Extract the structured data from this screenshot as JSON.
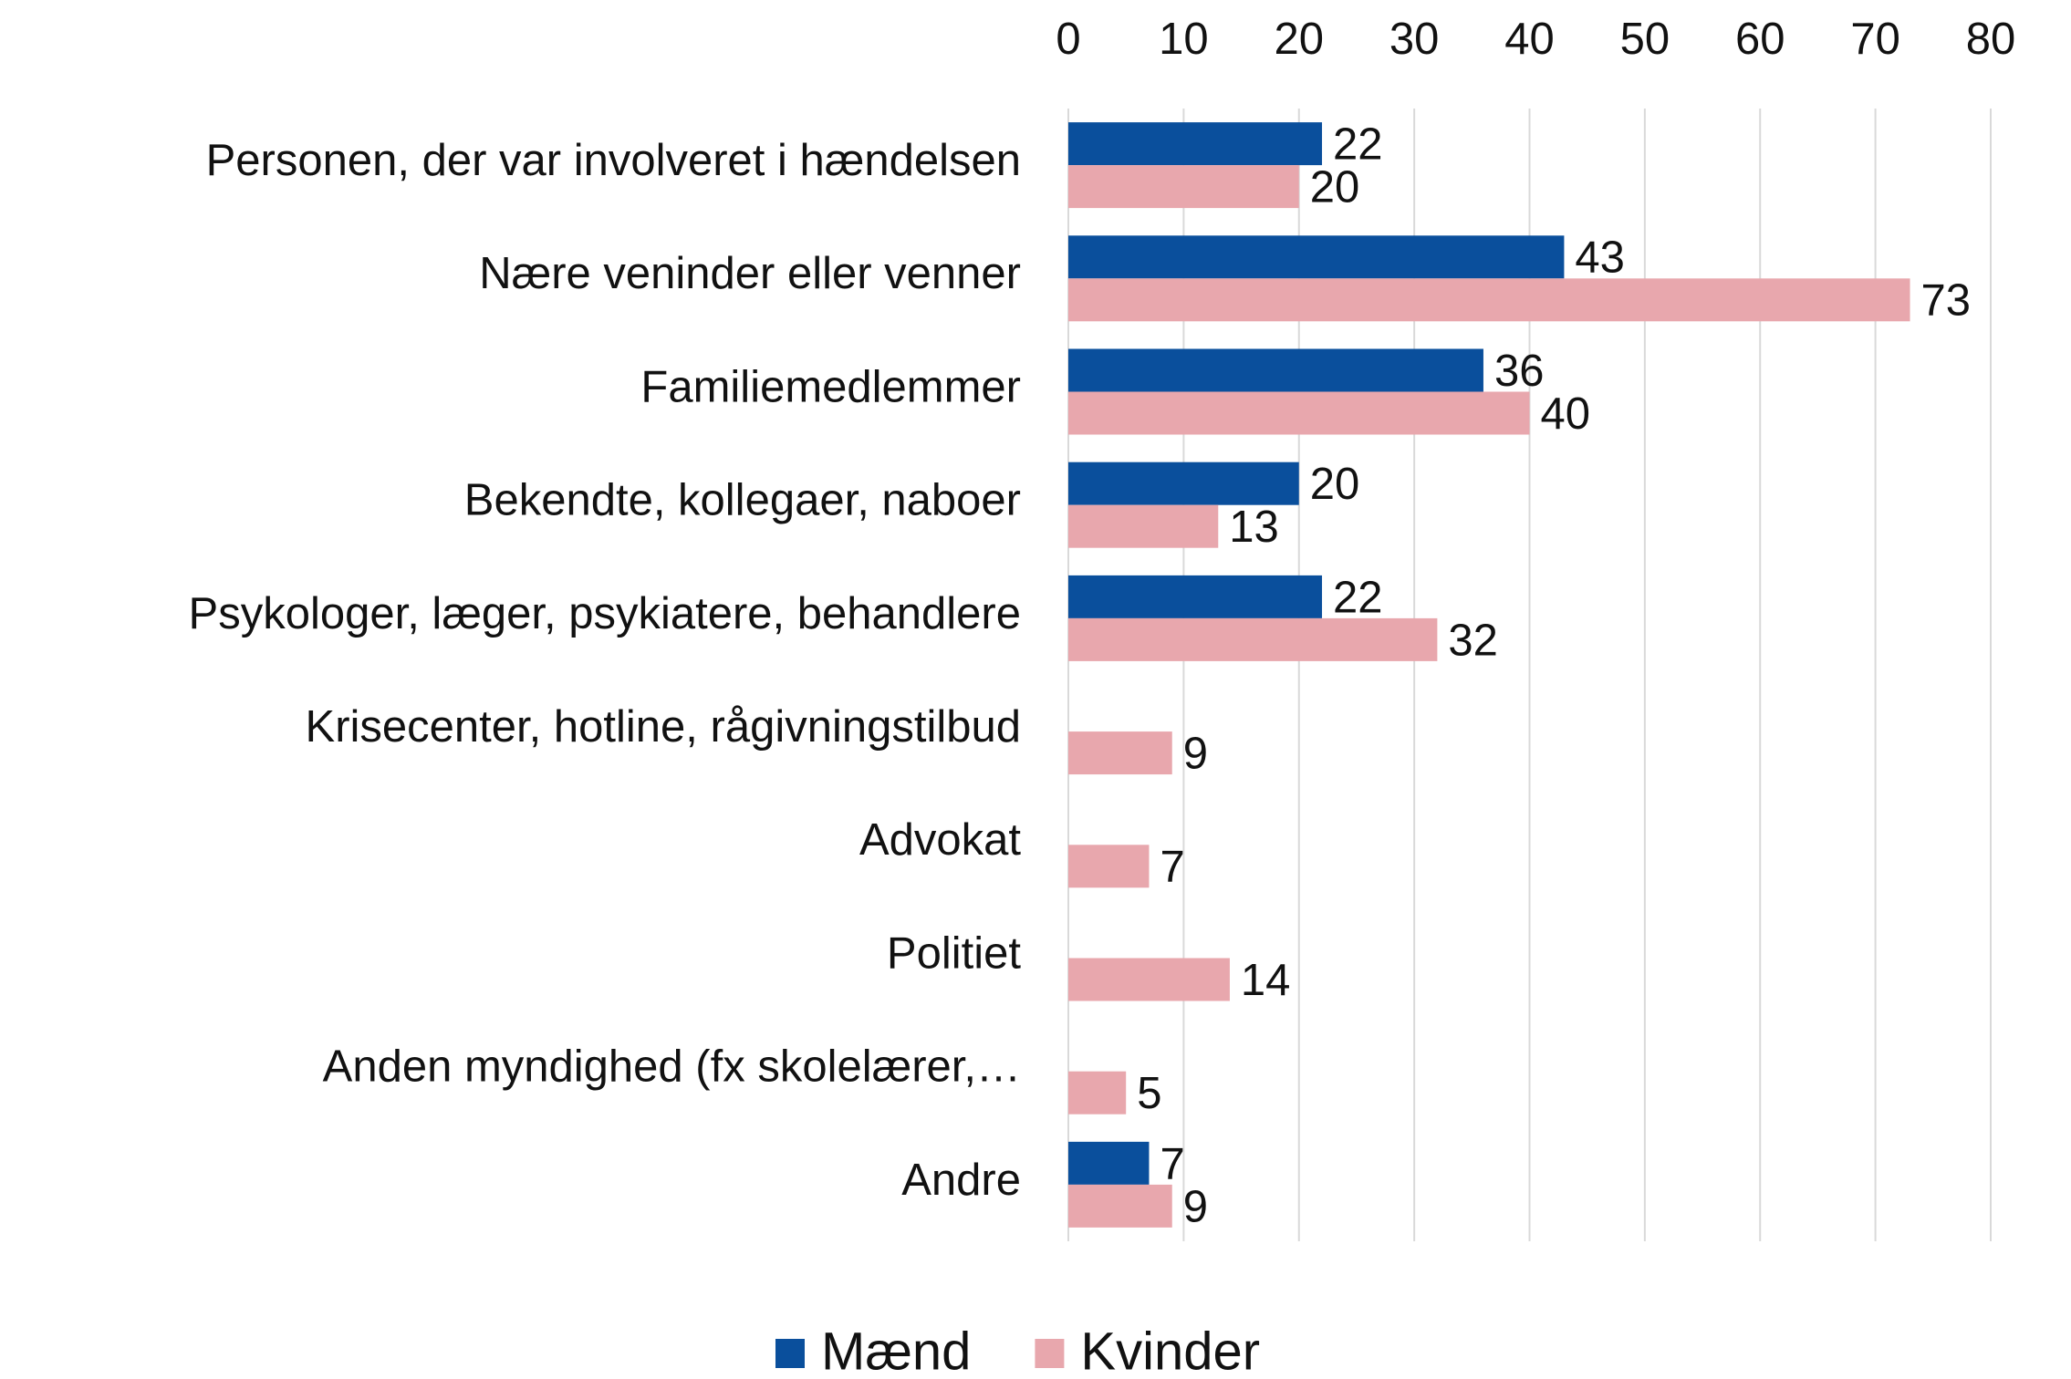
{
  "chart_data": {
    "type": "bar",
    "orientation": "horizontal",
    "categories": [
      "Personen, der var involveret i hændelsen",
      "Nære veninder eller venner",
      "Familiemedlemmer",
      "Bekendte, kollegaer, naboer",
      "Psykologer, læger, psykiatere, behandlere",
      "Krisecenter, hotline, rågivningstilbud",
      "Advokat",
      "Politiet",
      "Anden myndighed (fx skolelærer,…",
      "Andre"
    ],
    "series": [
      {
        "name": "Mænd",
        "color": "#0a4f9c",
        "values": [
          22,
          43,
          36,
          20,
          22,
          null,
          null,
          null,
          null,
          7
        ]
      },
      {
        "name": "Kvinder",
        "color": "#e8a7ad",
        "values": [
          20,
          73,
          40,
          13,
          32,
          9,
          7,
          14,
          5,
          9
        ]
      }
    ],
    "xlim": [
      0,
      80
    ],
    "xticks": [
      0,
      10,
      20,
      30,
      40,
      50,
      60,
      70,
      80
    ],
    "grid": true,
    "legend": "bottom"
  }
}
